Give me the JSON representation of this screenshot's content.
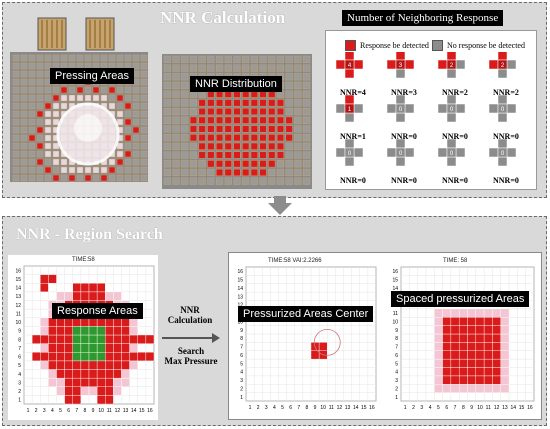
{
  "top": {
    "title": "NNR Calculation",
    "pressing_label": "Pressing Areas",
    "distribution_label": "NNR Distribution",
    "neighbor_box": {
      "title": "Number of Neighboring Response",
      "legend_detected": "Response be detected",
      "legend_none": "No response be detected",
      "items": [
        {
          "value": "4",
          "nnr": "NNR=4"
        },
        {
          "value": "3",
          "nnr": "NNR=3"
        },
        {
          "value": "2",
          "nnr": "NNR=2"
        },
        {
          "value": "2",
          "nnr": "NNR=2"
        },
        {
          "value": "1",
          "nnr": "NNR=1"
        },
        {
          "value": "0",
          "nnr": "NNR=0"
        },
        {
          "value": "0",
          "nnr": "NNR=0"
        },
        {
          "value": "0",
          "nnr": "NNR=0"
        },
        {
          "value": "0",
          "nnr": "NNR=0"
        },
        {
          "value": "0",
          "nnr": "NNR=0"
        },
        {
          "value": "0",
          "nnr": "NNR=0"
        },
        {
          "value": "0",
          "nnr": "NNR=0"
        }
      ]
    }
  },
  "bottom": {
    "title": "NNR - Region Search",
    "plot1": {
      "header": "TIME:58",
      "label": "Response Areas"
    },
    "arrow": {
      "line1": "NNR",
      "line2": "Calculation",
      "line3": "Search",
      "line4": "Max Pressure"
    },
    "plot2": {
      "header": "TIME:58  VAI:2.2266",
      "label": "Pressurized Areas Center"
    },
    "plot3": {
      "header": "TIME: 58",
      "label": "Spaced pressurized Areas"
    },
    "ticks": [
      "1",
      "2",
      "3",
      "4",
      "5",
      "6",
      "7",
      "8",
      "9",
      "10",
      "11",
      "12",
      "13",
      "14",
      "15",
      "16"
    ]
  },
  "colors": {
    "red": "#d91b1b",
    "green": "#2e9a2e",
    "pink": "#f4c6d4",
    "gray": "#8c8c8c"
  }
}
